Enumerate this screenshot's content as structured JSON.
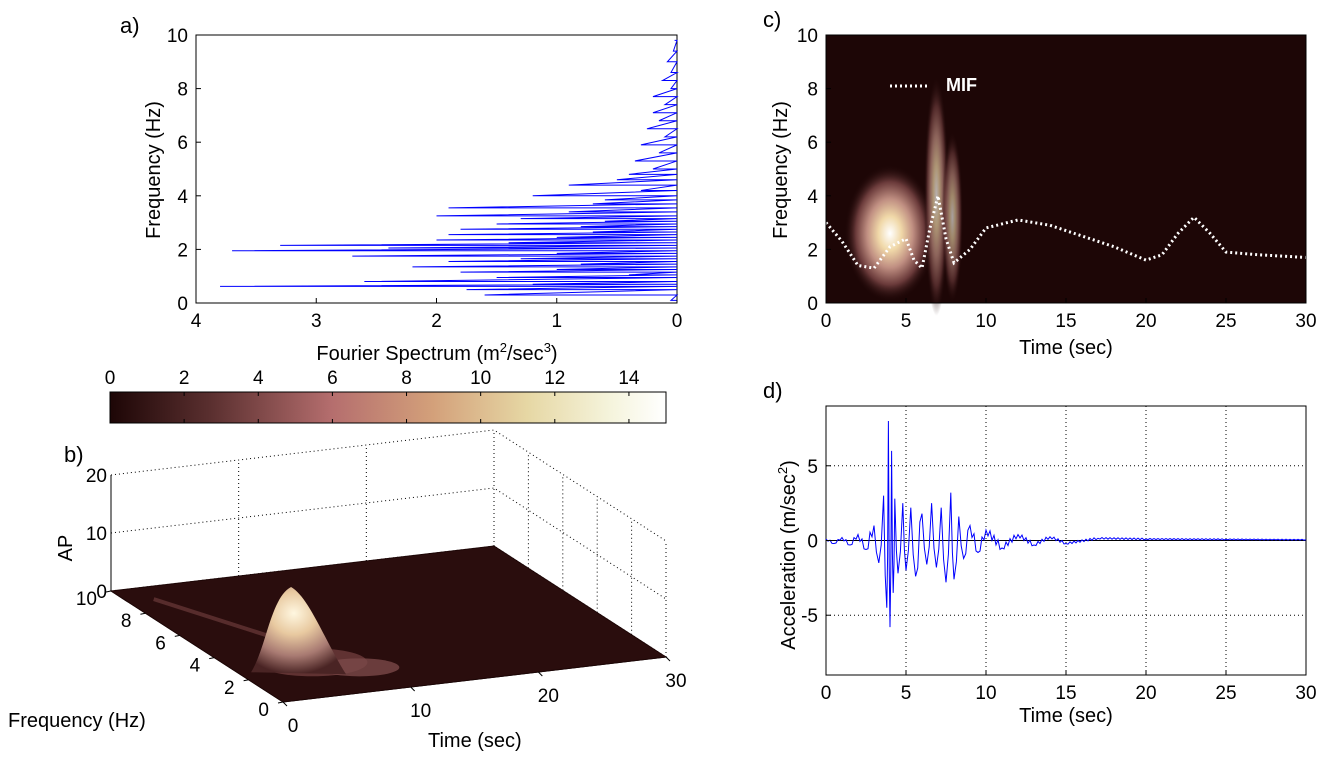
{
  "colors": {
    "spectrum_line": "#0000ff",
    "acceleration_line": "#0000ff",
    "mif_line": "#ffffff",
    "colormap": [
      "#1d0606",
      "#5a2f2f",
      "#b56e6e",
      "#d3a07a",
      "#e6d7a4",
      "#f5f4dc",
      "#ffffff"
    ]
  },
  "chart_data": [
    {
      "panel": "a)",
      "type": "line",
      "xlabel": "Fourier Spectrum (m",
      "xlabel_sup1": "2",
      "xlabel_mid": "/sec",
      "xlabel_sup2": "3",
      "xlabel_end": ")",
      "ylabel": "Frequency (Hz)",
      "xlim": [
        4,
        0
      ],
      "ylim": [
        0,
        10
      ],
      "xticks": [
        "4",
        "3",
        "2",
        "1",
        "0"
      ],
      "yticks": [
        "0",
        "2",
        "4",
        "6",
        "8",
        "10"
      ],
      "series": [
        {
          "y": [
            0.1,
            0.3,
            0.5,
            0.62,
            0.7,
            0.8,
            0.95,
            1.05,
            1.15,
            1.25,
            1.35,
            1.45,
            1.55,
            1.65,
            1.75,
            1.85,
            1.95,
            2.05,
            2.15,
            2.25,
            2.35,
            2.45,
            2.55,
            2.65,
            2.75,
            2.85,
            2.95,
            3.05,
            3.15,
            3.25,
            3.4,
            3.55,
            3.7,
            3.85,
            4.0,
            4.2,
            4.4,
            4.6,
            4.8,
            5.0,
            5.3,
            5.6,
            5.9,
            6.2,
            6.5,
            6.8,
            7.1,
            7.4,
            7.7,
            8.0,
            8.3,
            8.6,
            9.0,
            9.4,
            9.8
          ],
          "x": [
            0.05,
            1.6,
            1.75,
            3.8,
            1.2,
            2.6,
            1.5,
            0.4,
            1.8,
            1.0,
            2.2,
            0.8,
            1.9,
            1.3,
            2.7,
            1.0,
            3.7,
            2.4,
            3.3,
            1.4,
            2.0,
            1.0,
            1.9,
            0.7,
            1.8,
            0.8,
            1.5,
            0.6,
            1.3,
            2.0,
            0.9,
            1.9,
            0.7,
            0.6,
            1.2,
            0.3,
            0.9,
            0.5,
            0.4,
            0.2,
            0.35,
            0.15,
            0.3,
            0.1,
            0.25,
            0.15,
            0.2,
            0.1,
            0.2,
            0.05,
            0.12,
            0.05,
            0.08,
            0.03,
            0.02
          ]
        }
      ]
    },
    {
      "panel": "colorbar",
      "type": "heatmap",
      "ticks": [
        "0",
        "2",
        "4",
        "6",
        "8",
        "10",
        "12",
        "14"
      ],
      "range": [
        0,
        15
      ]
    },
    {
      "panel": "b)",
      "type": "area",
      "xlabel": "Time (sec)",
      "ylabel": "Frequency (Hz)",
      "zlabel": "AP",
      "xticks": [
        "0",
        "10",
        "20",
        "30"
      ],
      "yticks": [
        "0",
        "2",
        "4",
        "6",
        "8",
        "10"
      ],
      "zticks": [
        "0",
        "10",
        "20"
      ],
      "xlim": [
        0,
        30
      ],
      "ylim": [
        0,
        10
      ],
      "zlim": [
        0,
        20
      ],
      "peak": {
        "x": 4,
        "y": 2.5,
        "z": 14
      }
    },
    {
      "panel": "c)",
      "type": "heatmap",
      "xlabel": "Time (sec)",
      "ylabel": "Frequency (Hz)",
      "xlim": [
        0,
        30
      ],
      "ylim": [
        0,
        10
      ],
      "xticks": [
        "0",
        "5",
        "10",
        "15",
        "20",
        "25",
        "30"
      ],
      "yticks": [
        "0",
        "2",
        "4",
        "6",
        "8",
        "10"
      ],
      "legend": "MIF",
      "blobs": [
        {
          "x": 4,
          "y": 2.6,
          "sx": 1.3,
          "sy": 1.6,
          "level": 14
        },
        {
          "x": 6.9,
          "y": 4.0,
          "sx": 0.35,
          "sy": 2.8,
          "level": 5
        },
        {
          "x": 7.9,
          "y": 3.2,
          "sx": 0.3,
          "sy": 2.0,
          "level": 4
        }
      ],
      "mif": {
        "x": [
          0,
          1,
          2,
          3,
          4,
          5,
          5.5,
          6,
          6.5,
          7,
          7.5,
          8,
          9,
          10,
          12,
          14,
          16,
          18,
          20,
          21,
          22,
          23,
          24,
          25,
          27,
          30
        ],
        "y": [
          3.0,
          2.3,
          1.4,
          1.3,
          2.1,
          2.4,
          1.6,
          1.3,
          2.8,
          4.0,
          2.4,
          1.5,
          2.0,
          2.8,
          3.1,
          2.9,
          2.5,
          2.1,
          1.6,
          1.8,
          2.6,
          3.2,
          2.6,
          1.9,
          1.8,
          1.7
        ]
      }
    },
    {
      "panel": "d)",
      "type": "line",
      "xlabel": "Time (sec)",
      "ylabel": "Acceleration (m/sec",
      "ylabel_sup": "2",
      "ylabel_end": ")",
      "xlim": [
        0,
        30
      ],
      "ylim": [
        -9,
        9
      ],
      "xticks": [
        "0",
        "5",
        "10",
        "15",
        "20",
        "25",
        "30"
      ],
      "yticks": [
        "-5",
        "0",
        "5"
      ],
      "series": [
        {
          "x": [
            0,
            0.5,
            1,
            1.5,
            2,
            2.5,
            3,
            3.3,
            3.6,
            3.8,
            3.9,
            4.0,
            4.1,
            4.2,
            4.3,
            4.5,
            4.8,
            5.0,
            5.3,
            5.6,
            6.0,
            6.3,
            6.6,
            6.9,
            7.2,
            7.5,
            7.8,
            8.0,
            8.3,
            8.6,
            9.0,
            9.5,
            10,
            11,
            12,
            13,
            14,
            15,
            17,
            20,
            25,
            30
          ],
          "y": [
            0.1,
            -0.2,
            0.2,
            -0.3,
            0.4,
            -0.6,
            1.0,
            -1.5,
            3.0,
            -4.5,
            8.0,
            -5.8,
            6.0,
            -3.5,
            2.8,
            -2.2,
            2.5,
            -2.0,
            2.2,
            -2.4,
            1.8,
            -1.6,
            2.5,
            -1.8,
            2.2,
            -2.8,
            3.2,
            -2.6,
            1.6,
            -1.2,
            1.0,
            -0.8,
            0.7,
            -0.5,
            0.4,
            -0.3,
            0.25,
            -0.2,
            0.15,
            0.1,
            0.08,
            0.05
          ]
        }
      ]
    }
  ]
}
